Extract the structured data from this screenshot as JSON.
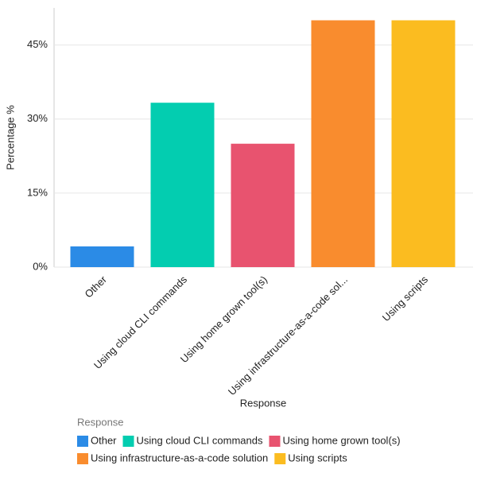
{
  "chart_data": {
    "type": "bar",
    "y_label": "Percentage %",
    "x_label": "Response",
    "categories": [
      "Other",
      "Using cloud CLI commands",
      "Using home grown tool(s)",
      "Using infrastructure-as-a-code sol...",
      "Using scripts"
    ],
    "values": [
      4.2,
      33.3,
      25,
      50,
      50
    ],
    "colors": [
      "#2b8be6",
      "#03cdb0",
      "#e8536f",
      "#f98c2e",
      "#fbbc20"
    ],
    "ylim": [
      0,
      52.5
    ],
    "yticks": [
      {
        "value": 0,
        "label": "0%"
      },
      {
        "value": 15,
        "label": "15%"
      },
      {
        "value": 30,
        "label": "30%"
      },
      {
        "value": 45,
        "label": "45%"
      }
    ],
    "grid": true,
    "legend": {
      "title": "Response",
      "items": [
        "Other",
        "Using cloud CLI commands",
        "Using home grown tool(s)",
        "Using infrastructure-as-a-code solution",
        "Using scripts"
      ]
    }
  }
}
